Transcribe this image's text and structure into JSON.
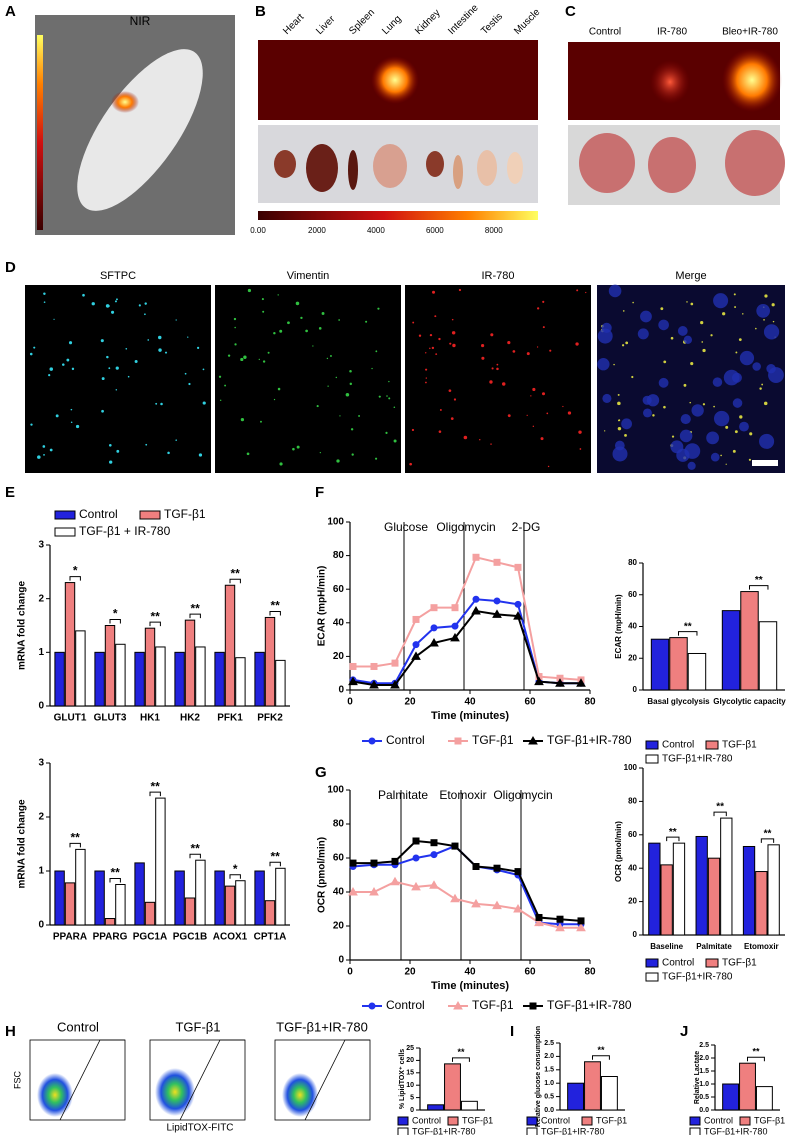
{
  "panels": {
    "letters": [
      "A",
      "B",
      "C",
      "D",
      "E",
      "F",
      "G",
      "H",
      "I",
      "J"
    ],
    "a_label": "NIR",
    "organs": [
      "Heart",
      "Liver",
      "Spleen",
      "Lung",
      "Kidney",
      "Intestine",
      "Testis",
      "Muscle"
    ],
    "colorbar": {
      "lim": [
        0,
        9500
      ],
      "ticks": [
        {
          "value": 0,
          "label": "0.00"
        },
        2000,
        4000,
        6000,
        8000
      ]
    },
    "c_labels": [
      "Control",
      "IR-780",
      "Bleo+IR-780"
    ],
    "d_labels": [
      "SFTPC",
      "Vimentin",
      "IR-780",
      "Merge"
    ],
    "h_labels": [
      "Control",
      "TGF-β1",
      "TGF-β1+IR-780"
    ],
    "h_ylabel": "FSC",
    "h_xlabel": "LipidTOX-FITC"
  },
  "chart_data": [
    {
      "type": "bar",
      "ylabel": "mRNA fold change",
      "categories": [
        "GLUT1",
        "GLUT3",
        "HK1",
        "HK2",
        "PFK1",
        "PFK2"
      ],
      "series": [
        {
          "name": "Control",
          "color": "#2222dd",
          "values": [
            1.0,
            1.0,
            1.0,
            1.0,
            1.0,
            1.0
          ]
        },
        {
          "name": "TGF-β1",
          "color": "#ef7f7f",
          "values": [
            2.3,
            1.5,
            1.45,
            1.6,
            2.25,
            1.65
          ]
        },
        {
          "name": "TGF-β1 + IR-780",
          "color": "#ffffff",
          "values": [
            1.4,
            1.15,
            1.1,
            1.1,
            0.9,
            0.85
          ]
        }
      ],
      "ylim": [
        0,
        3
      ],
      "yticks": [
        0,
        1,
        2,
        3
      ],
      "significance": [
        "*",
        "*",
        "**",
        "**",
        "**",
        "**"
      ],
      "legend": true
    },
    {
      "type": "bar",
      "ylabel": "mRNA fold change",
      "categories": [
        "PPARA",
        "PPARG",
        "PGC1A",
        "PGC1B",
        "ACOX1",
        "CPT1A"
      ],
      "series": [
        {
          "name": "Control",
          "color": "#2222dd",
          "values": [
            1.0,
            1.0,
            1.15,
            1.0,
            1.0,
            1.0
          ]
        },
        {
          "name": "TGF-β1",
          "color": "#ef7f7f",
          "values": [
            0.78,
            0.12,
            0.42,
            0.5,
            0.72,
            0.45
          ]
        },
        {
          "name": "TGF-β1 + IR-780",
          "color": "#ffffff",
          "values": [
            1.4,
            0.75,
            2.35,
            1.2,
            0.82,
            1.05
          ]
        }
      ],
      "ylim": [
        0,
        3
      ],
      "yticks": [
        0,
        1,
        2,
        3
      ],
      "significance": [
        "**",
        "**",
        "**",
        "**",
        "*",
        "**"
      ],
      "legend": false
    },
    {
      "type": "line",
      "ylabel": "ECAR (mpH/min)",
      "xlabel": "Time (minutes)",
      "x": [
        1,
        8,
        15,
        22,
        28,
        35,
        42,
        49,
        56,
        63,
        70,
        77
      ],
      "series": [
        {
          "name": "Control",
          "color": "#2233ee",
          "marker": "circle",
          "values": [
            6,
            4,
            4,
            27,
            37,
            38,
            54,
            53,
            51,
            5,
            4,
            4
          ]
        },
        {
          "name": "TGF-β1",
          "color": "#f4a0a0",
          "marker": "square",
          "values": [
            14,
            14,
            16,
            42,
            49,
            49,
            79,
            76,
            73,
            8,
            7,
            6
          ]
        },
        {
          "name": "TGF-β1+IR-780",
          "color": "#000000",
          "marker": "triangle",
          "values": [
            5,
            3,
            3,
            20,
            28,
            31,
            47,
            45,
            44,
            5,
            4,
            4
          ]
        }
      ],
      "xlim": [
        0,
        80
      ],
      "xticks": [
        0,
        20,
        40,
        60,
        80
      ],
      "ylim": [
        0,
        100
      ],
      "yticks": [
        0,
        20,
        40,
        60,
        80,
        100
      ],
      "injections": [
        {
          "label": "Glucose",
          "x": 18
        },
        {
          "label": "Oligomycin",
          "x": 38
        },
        {
          "label": "2-DG",
          "x": 58
        }
      ],
      "legend": true
    },
    {
      "type": "bar",
      "ylabel": "ECAR (mpH/min)",
      "categories": [
        "Basal glycolysis",
        "Glycolytic capacity"
      ],
      "series": [
        {
          "name": "Control",
          "color": "#2222dd",
          "values": [
            32,
            50
          ]
        },
        {
          "name": "TGF-β1",
          "color": "#ef7f7f",
          "values": [
            33,
            62
          ]
        },
        {
          "name": "TGF-β1+IR-780",
          "color": "#ffffff",
          "values": [
            23,
            43
          ]
        }
      ],
      "ylim": [
        0,
        80
      ],
      "yticks": [
        0,
        20,
        40,
        60,
        80
      ],
      "significance": [
        "**",
        "**"
      ],
      "legend": true
    },
    {
      "type": "line",
      "ylabel": "OCR (pmol/min)",
      "xlabel": "Time (minutes)",
      "x": [
        1,
        8,
        15,
        22,
        28,
        35,
        42,
        49,
        56,
        63,
        70,
        77
      ],
      "series": [
        {
          "name": "Control",
          "color": "#2233ee",
          "marker": "circle",
          "values": [
            55,
            56,
            56,
            60,
            62,
            67,
            55,
            53,
            50,
            22,
            21,
            21
          ]
        },
        {
          "name": "TGF-β1",
          "color": "#f4a0a0",
          "marker": "triangle",
          "values": [
            40,
            40,
            46,
            43,
            44,
            36,
            33,
            32,
            30,
            22,
            19,
            19
          ]
        },
        {
          "name": "TGF-β1+IR-780",
          "color": "#000000",
          "marker": "square",
          "values": [
            57,
            57,
            58,
            70,
            69,
            67,
            55,
            54,
            52,
            25,
            24,
            23
          ]
        }
      ],
      "xlim": [
        0,
        80
      ],
      "xticks": [
        0,
        20,
        40,
        60,
        80
      ],
      "ylim": [
        0,
        100
      ],
      "yticks": [
        0,
        20,
        40,
        60,
        80,
        100
      ],
      "injections": [
        {
          "label": "Palmitate",
          "x": 17
        },
        {
          "label": "Etomoxir",
          "x": 37
        },
        {
          "label": "Oligomycin",
          "x": 57
        }
      ],
      "legend": true
    },
    {
      "type": "bar",
      "ylabel": "OCR (pmol/min)",
      "categories": [
        "Baseline",
        "Palmitate",
        "Etomoxir"
      ],
      "series": [
        {
          "name": "Control",
          "color": "#2222dd",
          "values": [
            55,
            59,
            53
          ]
        },
        {
          "name": "TGF-β1",
          "color": "#ef7f7f",
          "values": [
            42,
            46,
            38
          ]
        },
        {
          "name": "TGF-β1+IR-780",
          "color": "#ffffff",
          "values": [
            55,
            70,
            54
          ]
        }
      ],
      "ylim": [
        0,
        100
      ],
      "yticks": [
        0,
        20,
        40,
        60,
        80,
        100
      ],
      "significance": [
        "**",
        "**",
        "**"
      ],
      "legend": true
    },
    {
      "type": "bar",
      "ylabel": "% LipidTOX⁺ cells",
      "categories": [
        null
      ],
      "series": [
        {
          "name": "Control",
          "color": "#2222dd",
          "values": [
            2.1
          ]
        },
        {
          "name": "TGF-β1",
          "color": "#ef7f7f",
          "values": [
            18.6
          ]
        },
        {
          "name": "TGF-β1+IR-780",
          "color": "#ffffff",
          "values": [
            3.5
          ]
        }
      ],
      "ylim": [
        0,
        25
      ],
      "yticks": [
        0,
        5,
        10,
        15,
        20,
        25
      ],
      "significance": [
        "**"
      ],
      "legend": true
    },
    {
      "type": "bar",
      "ylabel": "Relative glucose consumption",
      "categories": [
        null
      ],
      "series": [
        {
          "name": "Control",
          "color": "#2222dd",
          "values": [
            1.0
          ]
        },
        {
          "name": "TGF-β1",
          "color": "#ef7f7f",
          "values": [
            1.8
          ]
        },
        {
          "name": "TGF-β1+IR-780",
          "color": "#ffffff",
          "values": [
            1.25
          ]
        }
      ],
      "ylim": [
        0,
        2.5
      ],
      "yticks": [
        {
          "value": 0,
          "label": "0.0"
        },
        0.5,
        {
          "value": 1,
          "label": "1.0"
        },
        1.5,
        {
          "value": 2,
          "label": "2.0"
        },
        2.5
      ],
      "significance": [
        "**"
      ],
      "legend": true
    },
    {
      "type": "bar",
      "ylabel": "Relative Lactate",
      "categories": [
        null
      ],
      "series": [
        {
          "name": "Control",
          "color": "#2222dd",
          "values": [
            1.0
          ]
        },
        {
          "name": "TGF-β1",
          "color": "#ef7f7f",
          "values": [
            1.8
          ]
        },
        {
          "name": "TGF-β1+IR-780",
          "color": "#ffffff",
          "values": [
            0.9
          ]
        }
      ],
      "ylim": [
        0,
        2.5
      ],
      "yticks": [
        {
          "value": 0,
          "label": "0.0"
        },
        0.5,
        {
          "value": 1,
          "label": "1.0"
        },
        1.5,
        {
          "value": 2,
          "label": "2.0"
        },
        2.5
      ],
      "significance": [
        "**"
      ],
      "legend": true
    }
  ]
}
